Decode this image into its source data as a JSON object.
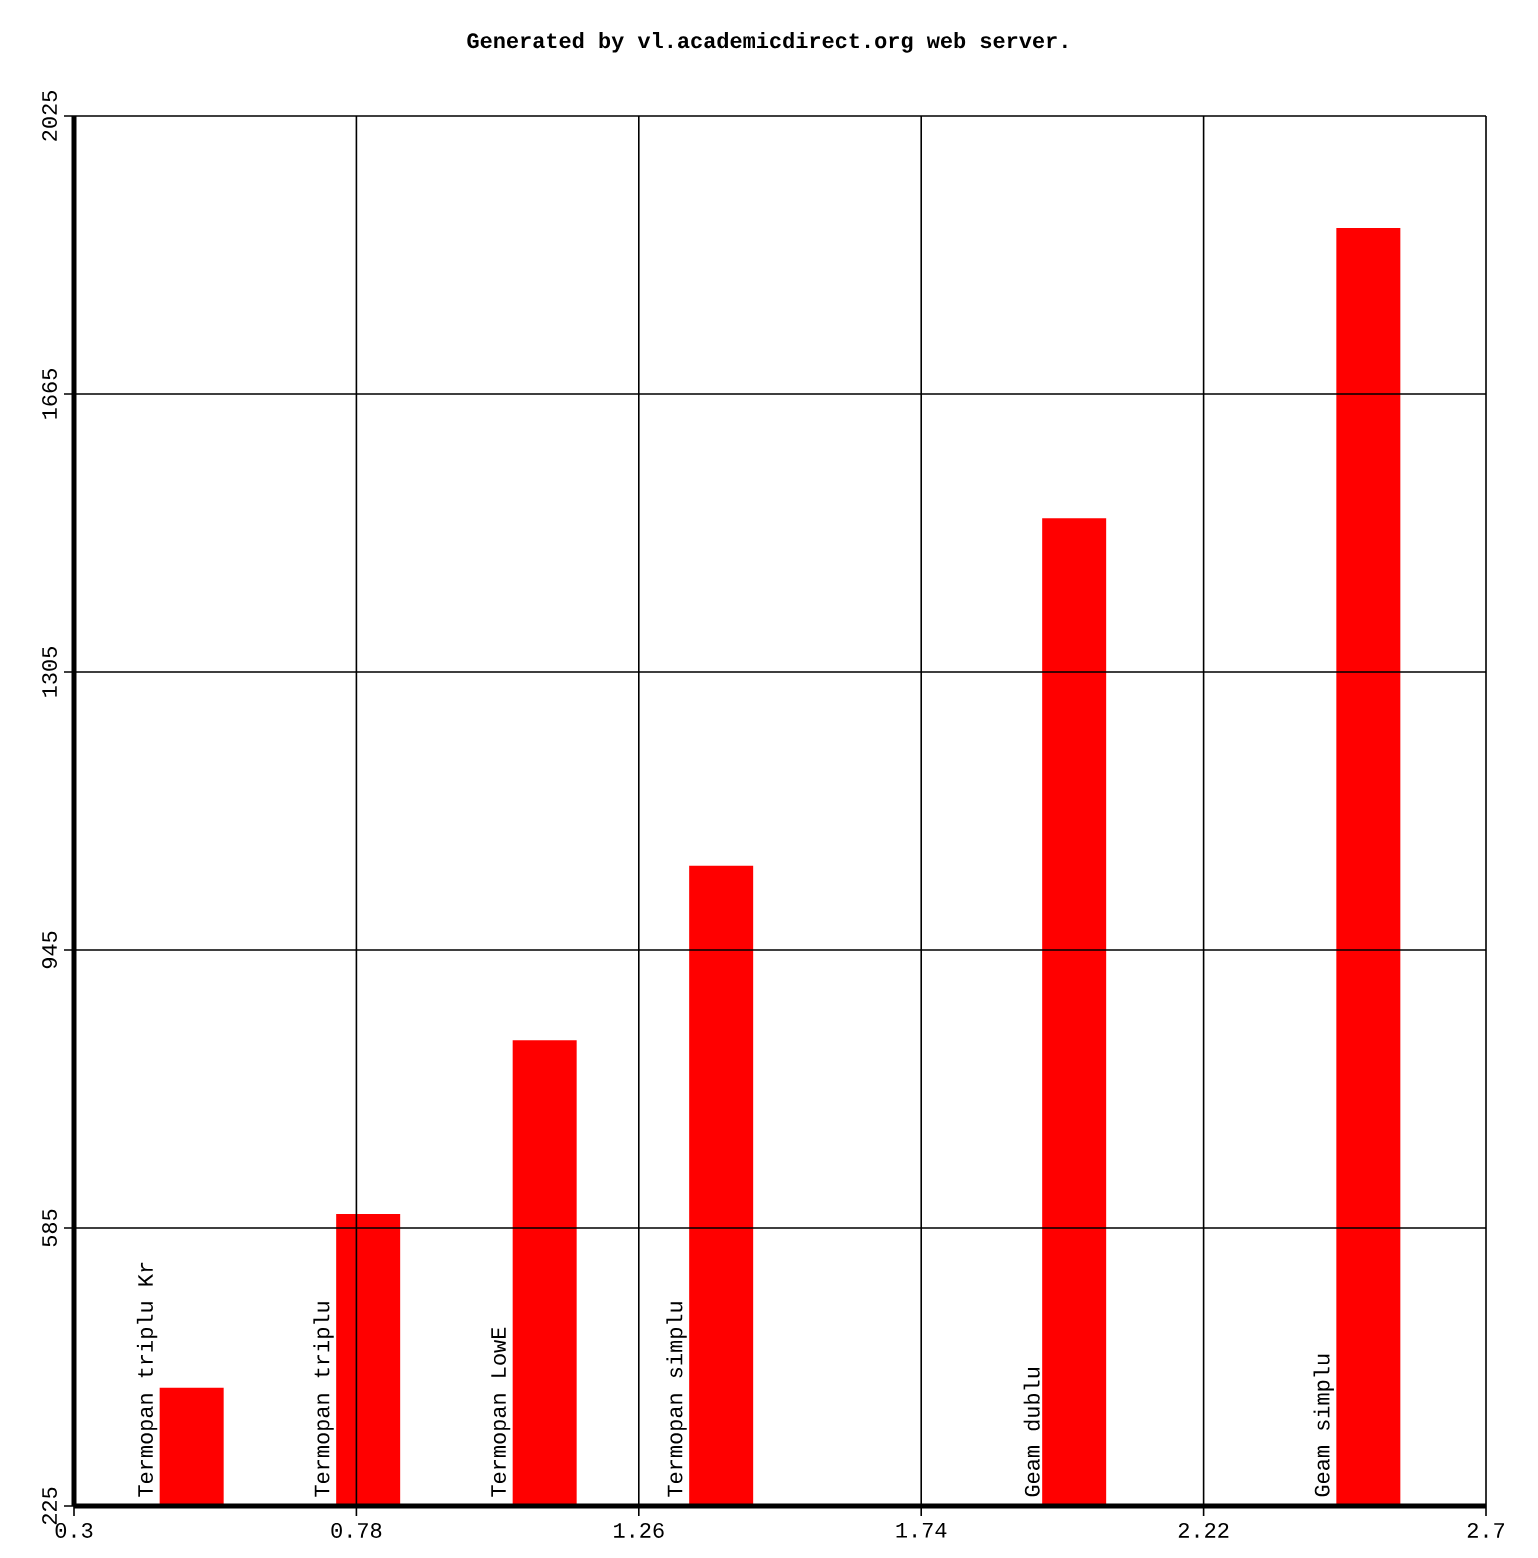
{
  "chart_data": {
    "type": "bar",
    "title": "Generated by vl.academicdirect.org web server.",
    "x": [
      0.5,
      0.8,
      1.1,
      1.4,
      2.0,
      2.5
    ],
    "values": [
      378,
      603,
      828,
      1054,
      1504,
      1880
    ],
    "color": "#ff0000",
    "xlim": [
      0.3,
      2.7
    ],
    "ylim": [
      225,
      2025
    ],
    "xticks": [
      0.3,
      0.78,
      1.26,
      1.74,
      2.22,
      2.7
    ],
    "yticks": [
      225,
      585,
      945,
      1305,
      1665,
      2025
    ],
    "grid": true,
    "annotations": [
      {
        "text": "Termopan triplu Kr",
        "x": 0.5,
        "y": 225
      },
      {
        "text": "Termopan triplu",
        "x": 0.8,
        "y": 225
      },
      {
        "text": "Termopan LowE",
        "x": 1.1,
        "y": 225
      },
      {
        "text": "Termopan simplu",
        "x": 1.4,
        "y": 225
      },
      {
        "text": "Geam dublu",
        "x": 2.0,
        "y": 225
      },
      {
        "text": "Geam simplu",
        "x": 2.5,
        "y": 225
      }
    ]
  }
}
